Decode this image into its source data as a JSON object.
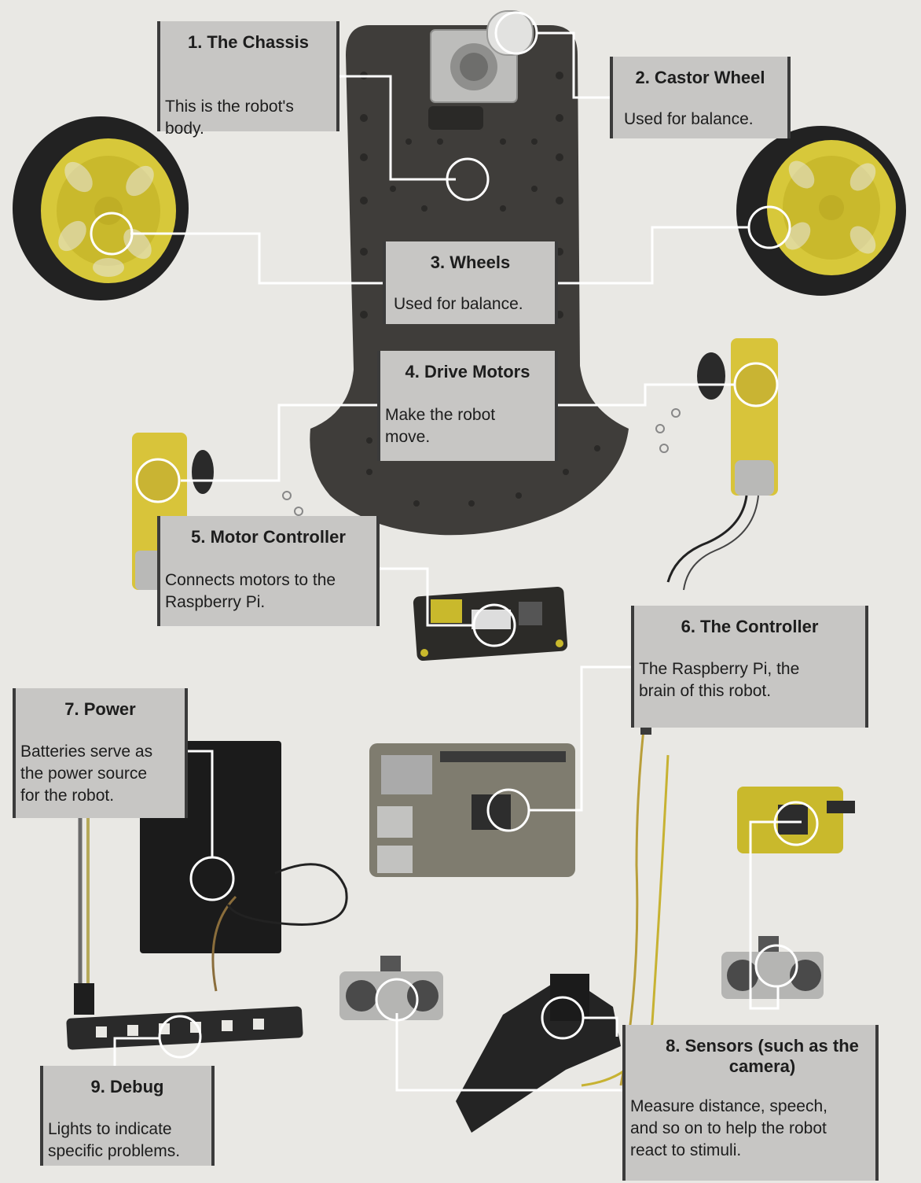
{
  "callouts": [
    {
      "id": "chassis",
      "title": "1. The Chassis",
      "description": "This is the robot's\nbody."
    },
    {
      "id": "castor-wheel",
      "title": "2. Castor Wheel",
      "description": "Used for balance."
    },
    {
      "id": "wheels",
      "title": "3. Wheels",
      "description": "Used for balance."
    },
    {
      "id": "drive-motors",
      "title": "4. Drive Motors",
      "description": "Make the robot\nmove."
    },
    {
      "id": "motor-controller",
      "title": "5. Motor Controller",
      "description": "Connects motors to the\nRaspberry Pi."
    },
    {
      "id": "controller",
      "title": "6. The Controller",
      "description": "The Raspberry Pi, the\nbrain of this robot."
    },
    {
      "id": "power",
      "title": "7. Power",
      "description": "Batteries serve as\nthe power source\nfor the robot."
    },
    {
      "id": "sensors",
      "title": "8. Sensors (such as the camera)",
      "description": "Measure distance, speech,\nand so on to help the robot\nreact to stimuli."
    },
    {
      "id": "debug",
      "title": "9. Debug",
      "description": "Lights to indicate\nspecific problems."
    }
  ],
  "colors": {
    "background": "#e9e8e4",
    "callout_fill": "#c7c6c4",
    "callout_border": "#3b3b3b",
    "leader_line": "#ffffff",
    "motor_yellow": "#d8c43a",
    "chassis": "#3f3d3a"
  }
}
